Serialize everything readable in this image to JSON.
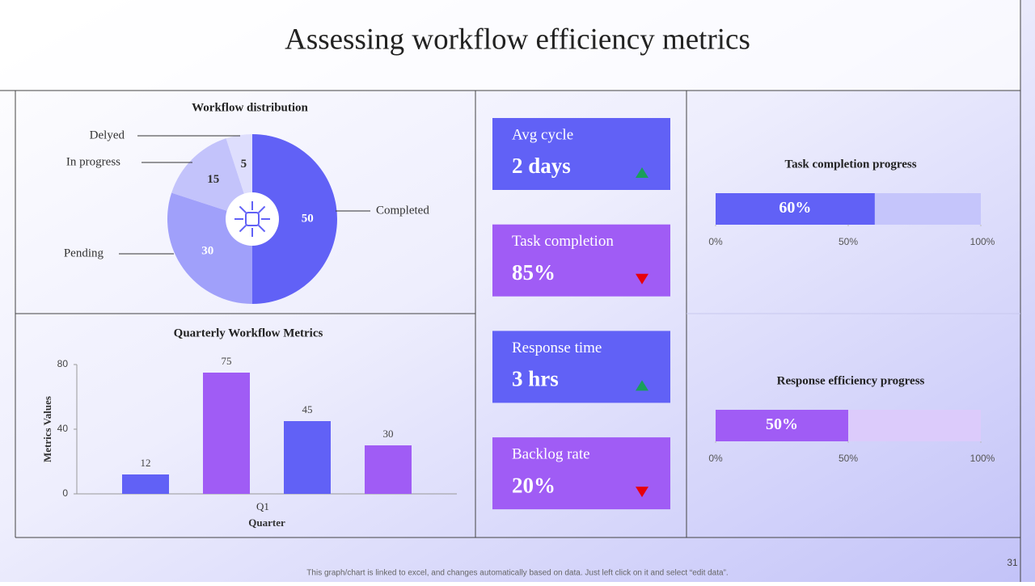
{
  "title": "Assessing workflow efficiency metrics",
  "chart_data": [
    {
      "type": "pie",
      "title": "Workflow distribution",
      "categories": [
        "Completed",
        "Pending",
        "In progress",
        "Delyed"
      ],
      "values": [
        50,
        30,
        15,
        5
      ],
      "colors": [
        "#6161f6",
        "#a0a0fa",
        "#c3c3fb",
        "#dedefd"
      ]
    },
    {
      "type": "bar",
      "title": "Quarterly Workflow Metrics",
      "categories": [
        "Q1"
      ],
      "xlabel": "Quarter",
      "ylabel": "Metrics Values",
      "series": [
        {
          "color": "#6161f6",
          "values": [
            12
          ]
        },
        {
          "color": "#a05cf5",
          "values": [
            75
          ]
        },
        {
          "color": "#6161f6",
          "values": [
            45
          ]
        },
        {
          "color": "#a05cf5",
          "values": [
            30
          ]
        }
      ],
      "ylim": [
        0,
        80
      ],
      "yticks": [
        0,
        40,
        80
      ]
    },
    {
      "type": "progress",
      "title": "Task completion progress",
      "values": [
        60
      ],
      "value_labels": [
        "60%"
      ],
      "color": "#6161f6",
      "track_color": "#c5c5fb",
      "xlim": [
        0,
        100
      ],
      "xticks": [
        {
          "value": 0,
          "label": "0%"
        },
        {
          "value": 50,
          "label": "50%"
        },
        {
          "value": 100,
          "label": "100%"
        }
      ]
    },
    {
      "type": "progress",
      "title": "Response efficiency progress",
      "values": [
        50
      ],
      "value_labels": [
        "50%"
      ],
      "color": "#a05cf5",
      "track_color": "#dccbfb",
      "xlim": [
        0,
        100
      ],
      "xticks": [
        {
          "value": 0,
          "label": "0%"
        },
        {
          "value": 50,
          "label": "50%"
        },
        {
          "value": 100,
          "label": "100%"
        }
      ]
    }
  ],
  "cards": [
    {
      "label": "Avg cycle",
      "value": "2 days",
      "trend": "up",
      "color": "#6161f6"
    },
    {
      "label": "Task completion",
      "value": "85%",
      "trend": "down",
      "color": "#a05cf5"
    },
    {
      "label": "Response time",
      "value": "3 hrs",
      "trend": "up",
      "color": "#6161f6"
    },
    {
      "label": "Backlog rate",
      "value": "20%",
      "trend": "down",
      "color": "#a05cf5"
    }
  ],
  "footnote": "This graph/chart is linked to excel, and changes automatically based on data. Just left click on it and select “edit data”.",
  "page_number": "31"
}
